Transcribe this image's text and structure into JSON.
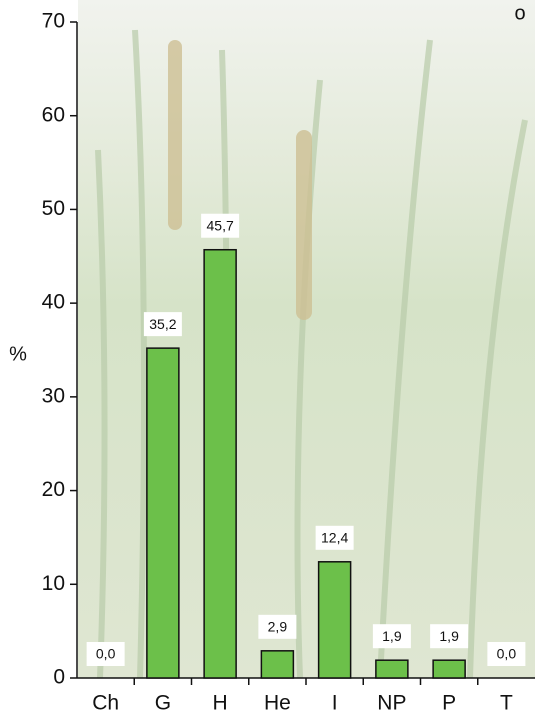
{
  "chart_data": {
    "type": "bar",
    "y_label": "%",
    "annotation": "o",
    "categories": [
      "Ch",
      "G",
      "H",
      "He",
      "I",
      "NP",
      "P",
      "T"
    ],
    "values": [
      0.0,
      35.2,
      45.7,
      2.9,
      12.4,
      1.9,
      1.9,
      0.0
    ],
    "value_labels": [
      "0,0",
      "35,2",
      "45,7",
      "2,9",
      "12,4",
      "1,9",
      "1,9",
      "0,0"
    ],
    "color": "#6cc04a",
    "ylim": [
      0,
      70
    ],
    "yticks": [
      0,
      10,
      20,
      30,
      40,
      50,
      60,
      70
    ]
  }
}
